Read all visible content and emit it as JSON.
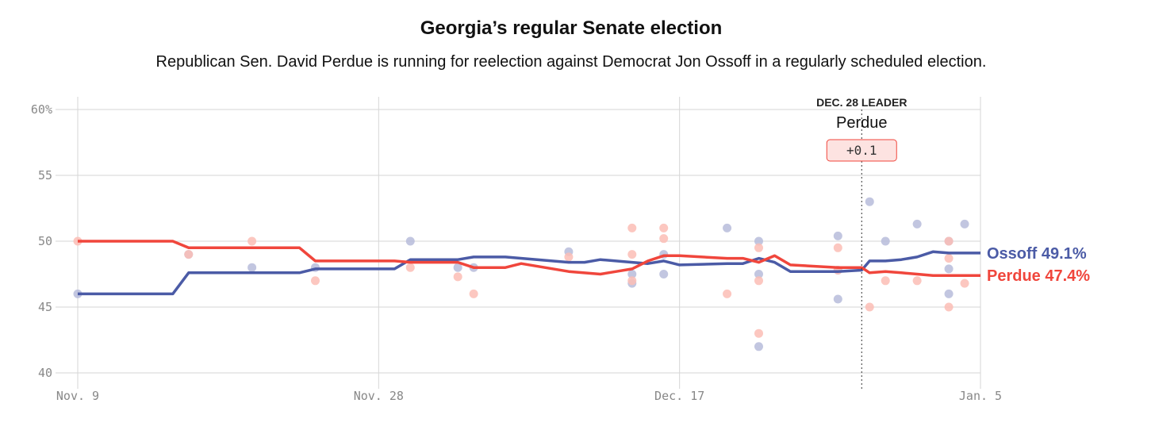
{
  "chart_data": {
    "type": "line",
    "title": "Georgia’s regular Senate election",
    "subtitle": "Republican Sen. David Perdue is running for reelection against Democrat Jon Ossoff in a regularly scheduled election.",
    "x_ticks": [
      {
        "label": "Nov. 9",
        "day": 0
      },
      {
        "label": "Nov. 28",
        "day": 19
      },
      {
        "label": "Dec. 17",
        "day": 38
      },
      {
        "label": "Jan. 5",
        "day": 57
      }
    ],
    "y_ticks": [
      "60%",
      "55",
      "50",
      "45",
      "40"
    ],
    "y_tick_values": [
      60,
      55,
      50,
      45,
      40
    ],
    "ylim": [
      40,
      60
    ],
    "xlim_days": [
      0,
      57
    ],
    "grid": true,
    "leader": {
      "heading": "DEC. 28 LEADER",
      "name": "Perdue",
      "margin": "+0.1",
      "day": 49.5
    },
    "series": [
      {
        "name": "Ossoff",
        "end_label": "Ossoff 49.1%",
        "color": "#4b5ba6",
        "dot_color": "#b7bcdb",
        "points": [
          [
            0,
            46.0
          ],
          [
            6,
            46.0
          ],
          [
            7,
            47.6
          ],
          [
            11,
            47.6
          ],
          [
            14,
            47.6
          ],
          [
            15,
            47.9
          ],
          [
            18,
            47.9
          ],
          [
            20,
            47.9
          ],
          [
            21,
            48.6
          ],
          [
            24,
            48.6
          ],
          [
            25,
            48.8
          ],
          [
            27,
            48.8
          ],
          [
            29,
            48.6
          ],
          [
            31,
            48.4
          ],
          [
            32,
            48.4
          ],
          [
            33,
            48.6
          ],
          [
            35,
            48.4
          ],
          [
            36,
            48.3
          ],
          [
            37,
            48.5
          ],
          [
            38,
            48.2
          ],
          [
            41,
            48.3
          ],
          [
            42,
            48.3
          ],
          [
            43,
            48.7
          ],
          [
            44,
            48.4
          ],
          [
            45,
            47.7
          ],
          [
            48,
            47.7
          ],
          [
            49.5,
            47.8
          ],
          [
            50,
            48.5
          ],
          [
            51,
            48.5
          ],
          [
            52,
            48.6
          ],
          [
            53,
            48.8
          ],
          [
            54,
            49.2
          ],
          [
            55,
            49.1
          ],
          [
            57,
            49.1
          ]
        ],
        "polls": [
          [
            0,
            46.0
          ],
          [
            7,
            49.0
          ],
          [
            11,
            48.0
          ],
          [
            15,
            48.0
          ],
          [
            21,
            50.0
          ],
          [
            24,
            48.0
          ],
          [
            25,
            48.0
          ],
          [
            31,
            49.2
          ],
          [
            35,
            46.8
          ],
          [
            35,
            47.5
          ],
          [
            37,
            49.0
          ],
          [
            37,
            47.5
          ],
          [
            41,
            51.0
          ],
          [
            43,
            50.0
          ],
          [
            43,
            47.5
          ],
          [
            43,
            42.0
          ],
          [
            48,
            50.4
          ],
          [
            48,
            45.6
          ],
          [
            48,
            47.8
          ],
          [
            50,
            53.0
          ],
          [
            51,
            50.0
          ],
          [
            53,
            51.3
          ],
          [
            55,
            50.0
          ],
          [
            55,
            47.9
          ],
          [
            55,
            46.0
          ],
          [
            56,
            51.3
          ]
        ]
      },
      {
        "name": "Perdue",
        "end_label": "Perdue 47.4%",
        "color": "#f0463c",
        "dot_color": "#fbbdb5",
        "points": [
          [
            0,
            50.0
          ],
          [
            6,
            50.0
          ],
          [
            7,
            49.5
          ],
          [
            11,
            49.5
          ],
          [
            14,
            49.5
          ],
          [
            15,
            48.5
          ],
          [
            18,
            48.5
          ],
          [
            20,
            48.5
          ],
          [
            21,
            48.4
          ],
          [
            24,
            48.4
          ],
          [
            25,
            48.0
          ],
          [
            27,
            48.0
          ],
          [
            28,
            48.3
          ],
          [
            31,
            47.7
          ],
          [
            33,
            47.5
          ],
          [
            34,
            47.7
          ],
          [
            35,
            47.9
          ],
          [
            36,
            48.5
          ],
          [
            37,
            48.9
          ],
          [
            38,
            48.9
          ],
          [
            41,
            48.7
          ],
          [
            42,
            48.7
          ],
          [
            43,
            48.4
          ],
          [
            44,
            48.9
          ],
          [
            45,
            48.2
          ],
          [
            48,
            48.0
          ],
          [
            49.5,
            48.0
          ],
          [
            50,
            47.6
          ],
          [
            51,
            47.7
          ],
          [
            52,
            47.6
          ],
          [
            53,
            47.5
          ],
          [
            54,
            47.4
          ],
          [
            55,
            47.4
          ],
          [
            57,
            47.4
          ]
        ],
        "polls": [
          [
            0,
            50.0
          ],
          [
            7,
            49.0
          ],
          [
            11,
            50.0
          ],
          [
            15,
            47.0
          ],
          [
            21,
            48.0
          ],
          [
            24,
            47.3
          ],
          [
            25,
            46.0
          ],
          [
            31,
            48.8
          ],
          [
            35,
            51.0
          ],
          [
            35,
            49.0
          ],
          [
            35,
            47.0
          ],
          [
            37,
            50.2
          ],
          [
            37,
            51.0
          ],
          [
            41,
            46.0
          ],
          [
            43,
            49.5
          ],
          [
            43,
            47.0
          ],
          [
            43,
            43.0
          ],
          [
            48,
            49.5
          ],
          [
            48,
            47.8
          ],
          [
            50,
            45.0
          ],
          [
            51,
            47.0
          ],
          [
            53,
            47.0
          ],
          [
            55,
            48.7
          ],
          [
            55,
            45.0
          ],
          [
            55,
            50.0
          ],
          [
            56,
            46.8
          ]
        ]
      }
    ]
  }
}
